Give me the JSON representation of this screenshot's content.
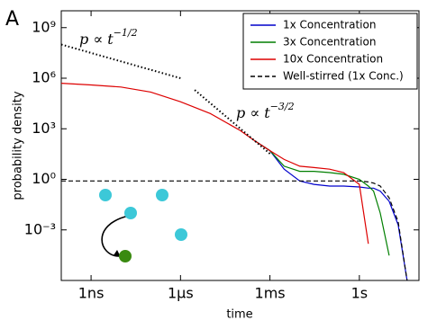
{
  "chart_data": {
    "type": "line",
    "panel_label": "A",
    "x_label": "time",
    "y_label": "probability density",
    "log_x": true,
    "log_y": true,
    "legend": "upper right",
    "xlim": [
      1e-10,
      100
    ],
    "ylim": [
      1e-06,
      10000000000.0
    ],
    "xticks": [
      {
        "value": 1e-09,
        "label": "1ns"
      },
      {
        "value": 1e-06,
        "label": "1μs"
      },
      {
        "value": 0.001,
        "label": "1ms"
      },
      {
        "value": 1,
        "label": "1s"
      }
    ],
    "yticks": [
      {
        "value": 1000000000.0,
        "label": "10⁹"
      },
      {
        "value": 1000000.0,
        "label": "10⁶"
      },
      {
        "value": 1000,
        "label": "10³"
      },
      {
        "value": 1,
        "label": "10⁰"
      },
      {
        "value": 0.001,
        "label": "10⁻³"
      }
    ],
    "x": [
      1e-10,
      1e-09,
      1e-08,
      1e-07,
      1e-06,
      1e-05,
      0.0001,
      0.0003,
      0.001,
      0.003,
      0.01,
      0.03,
      0.1,
      0.3,
      1,
      2,
      3,
      5,
      10,
      20,
      40
    ],
    "series": [
      {
        "name": "1x Concentration",
        "color": "#0000cc",
        "values": [
          null,
          null,
          null,
          null,
          null,
          null,
          null,
          200,
          50,
          4,
          0.8,
          0.5,
          0.4,
          0.4,
          0.35,
          0.3,
          0.3,
          0.2,
          0.05,
          0.002,
          1e-06
        ]
      },
      {
        "name": "3x Concentration",
        "color": "#007f00",
        "values": [
          null,
          null,
          null,
          null,
          null,
          null,
          null,
          200,
          50,
          6,
          3,
          3,
          2.5,
          2,
          1,
          0.4,
          0.2,
          0.01,
          3e-05,
          null,
          null
        ]
      },
      {
        "name": "10x Concentration",
        "color": "#dd0000",
        "values": [
          500000,
          400000,
          300000,
          150000,
          40000,
          8000,
          800,
          200,
          50,
          15,
          6,
          5,
          4,
          2.5,
          0.5,
          0.00015,
          null,
          null,
          null,
          null,
          null
        ]
      },
      {
        "name": "Well-stirred (1x Conc.)",
        "color": "#000000",
        "dashed": true,
        "values": [
          0.8,
          0.8,
          0.8,
          0.8,
          0.8,
          0.8,
          0.8,
          0.8,
          0.8,
          0.8,
          0.8,
          0.8,
          0.8,
          0.8,
          0.8,
          0.7,
          0.6,
          0.4,
          0.08,
          0.003,
          1e-06
        ]
      }
    ],
    "guides": [
      {
        "text": "p ∝ t",
        "exponent": "−1/2",
        "x": [
          1e-10,
          1e-06
        ],
        "values": [
          100000000,
          1000000
        ]
      },
      {
        "text": "p ∝ t",
        "exponent": "−3/2",
        "x": [
          3e-06,
          0.001
        ],
        "values": [
          200000,
          33
        ]
      }
    ]
  }
}
